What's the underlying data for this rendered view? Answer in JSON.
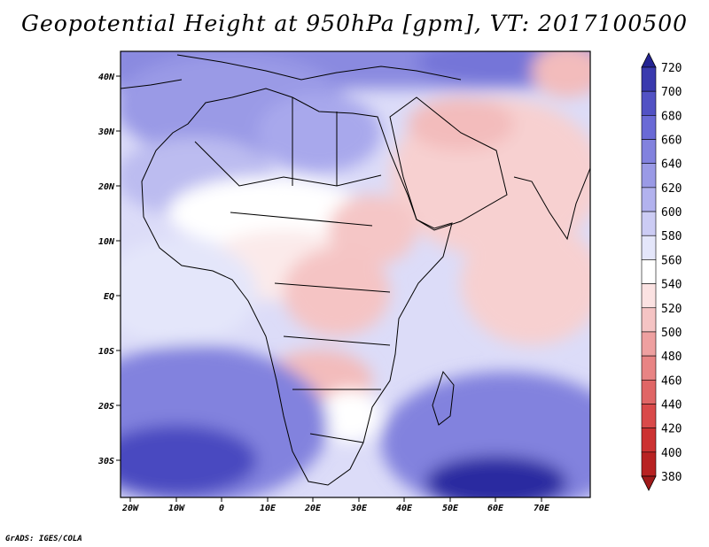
{
  "title": "Geopotential Height at 950hPa [gpm], VT: 2017100500",
  "footer": "GrADS: IGES/COLA",
  "chart_data": {
    "type": "heatmap",
    "variable": "Geopotential Height",
    "level": "950hPa",
    "units": "gpm",
    "valid_time": "2017100500",
    "lon_range": [
      -20,
      80
    ],
    "lat_range": [
      -37,
      45
    ],
    "x_ticks": [
      "20W",
      "10W",
      "0",
      "10E",
      "20E",
      "30E",
      "40E",
      "50E",
      "60E",
      "70E"
    ],
    "x_tick_values": [
      -20,
      -10,
      0,
      10,
      20,
      30,
      40,
      50,
      60,
      70
    ],
    "y_ticks": [
      "40N",
      "30N",
      "20N",
      "10N",
      "EQ",
      "10S",
      "20S",
      "30S"
    ],
    "y_tick_values": [
      40,
      30,
      20,
      10,
      0,
      -10,
      -20,
      -30
    ],
    "colorbar": {
      "levels": [
        380,
        400,
        420,
        440,
        460,
        480,
        500,
        520,
        540,
        560,
        580,
        600,
        620,
        640,
        660,
        680,
        700,
        720
      ],
      "labels": [
        "720",
        "700",
        "680",
        "660",
        "640",
        "620",
        "600",
        "580",
        "560",
        "540",
        "520",
        "500",
        "480",
        "460",
        "440",
        "420",
        "400",
        "380"
      ],
      "colors": [
        "#a01a1a",
        "#b82222",
        "#cc3232",
        "#d94a4a",
        "#e06666",
        "#e88484",
        "#eea0a0",
        "#f5c4c4",
        "#fbe2e2",
        "#ffffff",
        "#e4e6fa",
        "#ccccf4",
        "#b2b2ee",
        "#9a9ae6",
        "#8282de",
        "#6a6ad6",
        "#5252c4",
        "#3a3aae",
        "#242492"
      ]
    },
    "fields": {
      "sahara_high": "~580-620",
      "arabia_india_low": "~500-520",
      "south_atlantic_high": "~660-700",
      "south_indian_high": "~680-720",
      "equatorial_band": "~540-560"
    }
  }
}
